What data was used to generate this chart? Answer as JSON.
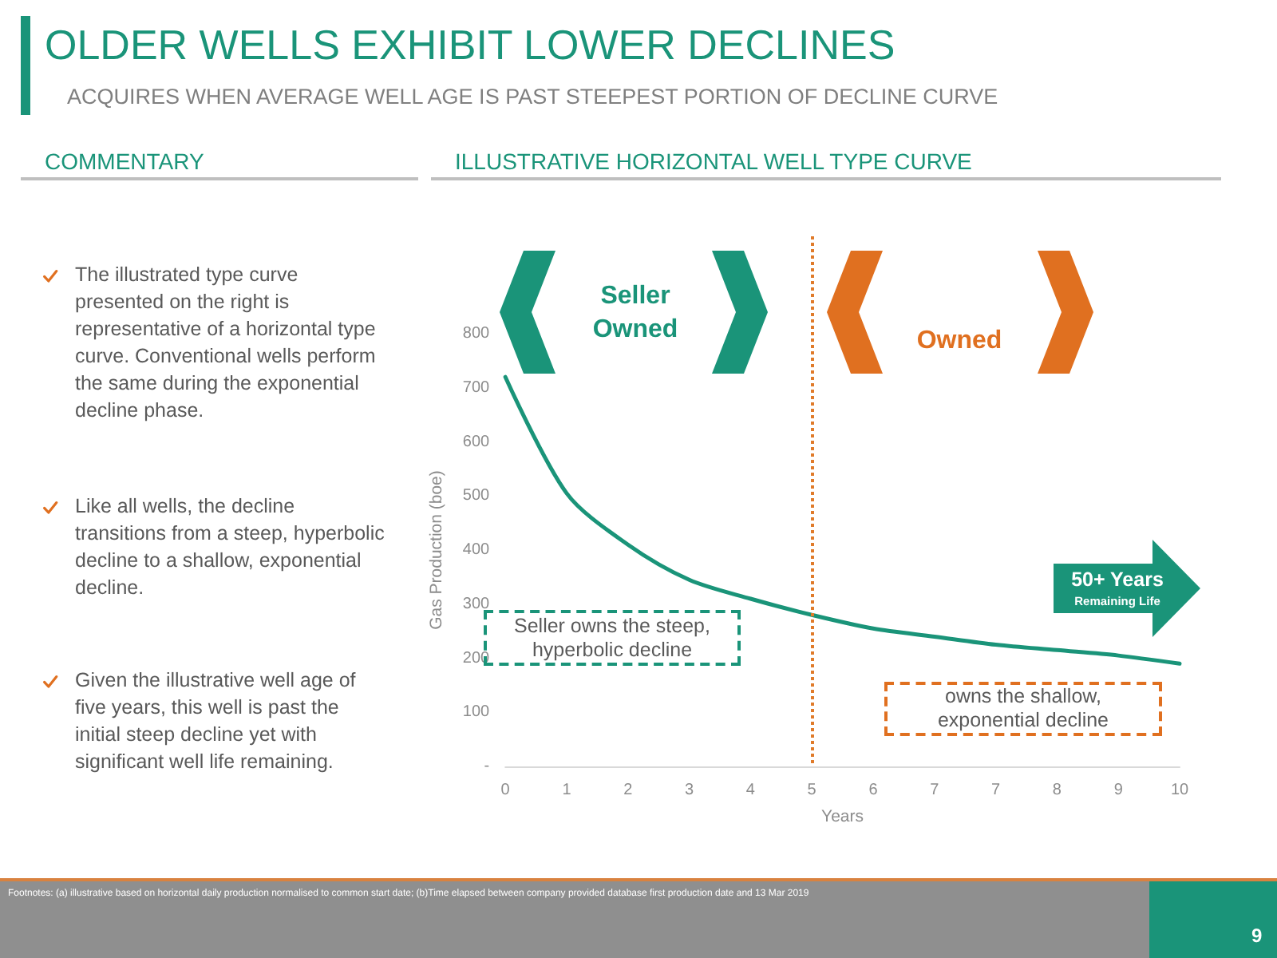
{
  "chart_data": {
    "type": "line",
    "title": "OLDER WELLS EXHIBIT LOWER DECLINES",
    "subtitle": "ACQUIRES WHEN AVERAGE WELL AGE IS PAST STEEPEST PORTION OF DECLINE CURVE",
    "xlabel": "Years",
    "ylabel": "Gas Production (boe)",
    "categories": [
      "0",
      "1",
      "2",
      "3",
      "4",
      "5",
      "6",
      "7",
      "7",
      "8",
      "9",
      "10"
    ],
    "series": [
      {
        "color": "#1a9479",
        "values": [
          720,
          505,
          410,
          345,
          310,
          280,
          255,
          240,
          225,
          215,
          205,
          190
        ]
      }
    ],
    "ylim": [
      0,
      800
    ],
    "yticks": [
      {
        "value": 0,
        "label": "-"
      },
      100,
      200,
      300,
      400,
      500,
      600,
      700,
      800
    ],
    "grid": false,
    "marker": "none",
    "ref_lines": [
      {
        "axis": "x",
        "value": "5",
        "color": "#e07b2a",
        "line_style": "dotted"
      }
    ],
    "annotations": [
      "COMMENTARY",
      "ILLUSTRATIVE HORIZONTAL WELL TYPE CURVE",
      "The illustrated type curve presented on the right is representative of a horizontal type curve. Conventional wells perform the same during the exponential decline phase.",
      "Like all wells, the decline transitions from a steep, hyperbolic decline to a shallow, exponential decline.",
      "Given the illustrative well age of five years, this well is past the initial steep decline yet with significant well life remaining.",
      "Seller Owned",
      "Owned",
      "50+ Years",
      "Remaining Life",
      "Seller owns the steep, hyperbolic decline",
      "owns the shallow, exponential decline",
      "Footnotes: (a) illustrative based on horizontal daily production normalised to common start date; (b)Time elapsed between company provided database first production date and 13 Mar 2019",
      "9"
    ]
  }
}
